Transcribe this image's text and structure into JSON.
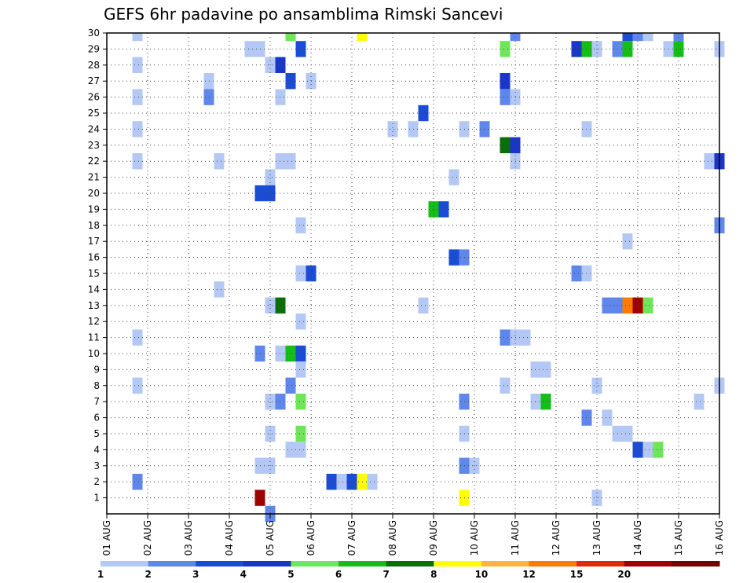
{
  "chart_data": {
    "type": "heatmap",
    "title": "GEFS 6hr padavine po ansamblima Rimski Sancevi",
    "xlabel": "",
    "ylabel": "",
    "x_ticks": [
      "01 AUG",
      "02 AUG",
      "03 AUG",
      "04 AUG",
      "05 AUG",
      "06 AUG",
      "07 AUG",
      "08 AUG",
      "09 AUG",
      "10 AUG",
      "11 AUG",
      "12 AUG",
      "13 AUG",
      "14 AUG",
      "15 AUG",
      "16 AUG"
    ],
    "y_ticks": [
      "1",
      "2",
      "3",
      "4",
      "5",
      "6",
      "7",
      "8",
      "9",
      "10",
      "11",
      "12",
      "13",
      "14",
      "15",
      "16",
      "17",
      "18",
      "19",
      "20",
      "21",
      "22",
      "23",
      "24",
      "25",
      "26",
      "27",
      "28",
      "29",
      "30"
    ],
    "xlim_days": [
      1,
      16
    ],
    "ylim_members": [
      0,
      30
    ],
    "grid": true,
    "legend": {
      "placement": "bottom",
      "levels": [
        "1",
        "2",
        "3",
        "4",
        "5",
        "6",
        "7",
        "8",
        "10",
        "12",
        "15",
        "20"
      ],
      "colors": [
        "#b4c8f5",
        "#5f87eb",
        "#1a4cd6",
        "#1a36c8",
        "#6ee658",
        "#14be14",
        "#0a6e0a",
        "#ffff00",
        "#ffb43c",
        "#ff7a00",
        "#dc2a0a",
        "#a00000",
        "#780000"
      ]
    },
    "cells": [
      {
        "day": 1.75,
        "member": 30,
        "value": 1
      },
      {
        "day": 1.75,
        "member": 28,
        "value": 1
      },
      {
        "day": 1.75,
        "member": 26,
        "value": 1
      },
      {
        "day": 1.75,
        "member": 24,
        "value": 1
      },
      {
        "day": 1.75,
        "member": 22,
        "value": 1
      },
      {
        "day": 1.75,
        "member": 11,
        "value": 1
      },
      {
        "day": 1.75,
        "member": 8,
        "value": 1
      },
      {
        "day": 1.75,
        "member": 2,
        "value": 2
      },
      {
        "day": 3.5,
        "member": 27,
        "value": 1
      },
      {
        "day": 3.5,
        "member": 26,
        "value": 2
      },
      {
        "day": 3.75,
        "member": 22,
        "value": 1
      },
      {
        "day": 3.75,
        "member": 14,
        "value": 1
      },
      {
        "day": 4.5,
        "member": 29,
        "value": 1
      },
      {
        "day": 4.75,
        "member": 29,
        "value": 1
      },
      {
        "day": 4.75,
        "member": 20,
        "value": 3
      },
      {
        "day": 4.75,
        "member": 10,
        "value": 2
      },
      {
        "day": 4.75,
        "member": 1,
        "value": 20
      },
      {
        "day": 5.0,
        "member": 28,
        "value": 1
      },
      {
        "day": 5.0,
        "member": 21,
        "value": 1
      },
      {
        "day": 5.0,
        "member": 20,
        "value": 3
      },
      {
        "day": 5.0,
        "member": 13,
        "value": 1
      },
      {
        "day": 5.0,
        "member": 7,
        "value": 1
      },
      {
        "day": 5.0,
        "member": 5,
        "value": 1
      },
      {
        "day": 5.0,
        "member": 3,
        "value": 1
      },
      {
        "day": 5.0,
        "member": 0,
        "value": 2
      },
      {
        "day": 4.75,
        "member": 3,
        "value": 1
      },
      {
        "day": 5.25,
        "member": 28,
        "value": 4
      },
      {
        "day": 5.25,
        "member": 26,
        "value": 1
      },
      {
        "day": 5.25,
        "member": 22,
        "value": 1
      },
      {
        "day": 5.25,
        "member": 13,
        "value": 7
      },
      {
        "day": 5.25,
        "member": 10,
        "value": 1
      },
      {
        "day": 5.25,
        "member": 7,
        "value": 2
      },
      {
        "day": 5.5,
        "member": 30,
        "value": 5
      },
      {
        "day": 5.5,
        "member": 27,
        "value": 3
      },
      {
        "day": 5.5,
        "member": 22,
        "value": 1
      },
      {
        "day": 5.5,
        "member": 10,
        "value": 6
      },
      {
        "day": 5.5,
        "member": 8,
        "value": 2
      },
      {
        "day": 5.5,
        "member": 4,
        "value": 1
      },
      {
        "day": 5.75,
        "member": 29,
        "value": 3
      },
      {
        "day": 5.75,
        "member": 18,
        "value": 1
      },
      {
        "day": 5.75,
        "member": 15,
        "value": 1
      },
      {
        "day": 5.75,
        "member": 12,
        "value": 1
      },
      {
        "day": 5.75,
        "member": 10,
        "value": 3
      },
      {
        "day": 5.75,
        "member": 9,
        "value": 1
      },
      {
        "day": 5.75,
        "member": 7,
        "value": 5
      },
      {
        "day": 5.75,
        "member": 5,
        "value": 5
      },
      {
        "day": 5.75,
        "member": 4,
        "value": 1
      },
      {
        "day": 6.0,
        "member": 27,
        "value": 1
      },
      {
        "day": 6.0,
        "member": 15,
        "value": 3
      },
      {
        "day": 6.5,
        "member": 2,
        "value": 3
      },
      {
        "day": 6.75,
        "member": 2,
        "value": 1
      },
      {
        "day": 7.0,
        "member": 2,
        "value": 3
      },
      {
        "day": 7.25,
        "member": 2,
        "value": 8
      },
      {
        "day": 7.5,
        "member": 2,
        "value": 1
      },
      {
        "day": 7.25,
        "member": 30,
        "value": 8
      },
      {
        "day": 8.0,
        "member": 24,
        "value": 1
      },
      {
        "day": 8.5,
        "member": 24,
        "value": 1
      },
      {
        "day": 8.75,
        "member": 25,
        "value": 3
      },
      {
        "day": 8.75,
        "member": 13,
        "value": 1
      },
      {
        "day": 9.0,
        "member": 19,
        "value": 6
      },
      {
        "day": 9.25,
        "member": 19,
        "value": 3
      },
      {
        "day": 9.5,
        "member": 21,
        "value": 1
      },
      {
        "day": 9.5,
        "member": 16,
        "value": 3
      },
      {
        "day": 9.75,
        "member": 24,
        "value": 1
      },
      {
        "day": 9.75,
        "member": 16,
        "value": 2
      },
      {
        "day": 9.75,
        "member": 7,
        "value": 2
      },
      {
        "day": 9.75,
        "member": 5,
        "value": 1
      },
      {
        "day": 9.75,
        "member": 3,
        "value": 2
      },
      {
        "day": 9.75,
        "member": 1,
        "value": 8
      },
      {
        "day": 10.0,
        "member": 3,
        "value": 1
      },
      {
        "day": 10.25,
        "member": 24,
        "value": 2
      },
      {
        "day": 10.75,
        "member": 29,
        "value": 5
      },
      {
        "day": 10.75,
        "member": 27,
        "value": 4
      },
      {
        "day": 10.75,
        "member": 26,
        "value": 2
      },
      {
        "day": 10.75,
        "member": 23,
        "value": 7
      },
      {
        "day": 10.75,
        "member": 11,
        "value": 2
      },
      {
        "day": 10.75,
        "member": 8,
        "value": 1
      },
      {
        "day": 11.0,
        "member": 30,
        "value": 2
      },
      {
        "day": 11.0,
        "member": 26,
        "value": 1
      },
      {
        "day": 11.0,
        "member": 23,
        "value": 4
      },
      {
        "day": 11.0,
        "member": 22,
        "value": 1
      },
      {
        "day": 11.0,
        "member": 11,
        "value": 1
      },
      {
        "day": 11.25,
        "member": 11,
        "value": 1
      },
      {
        "day": 11.5,
        "member": 9,
        "value": 1
      },
      {
        "day": 11.5,
        "member": 7,
        "value": 1
      },
      {
        "day": 11.75,
        "member": 9,
        "value": 1
      },
      {
        "day": 11.75,
        "member": 7,
        "value": 6
      },
      {
        "day": 12.5,
        "member": 29,
        "value": 4
      },
      {
        "day": 12.75,
        "member": 29,
        "value": 6
      },
      {
        "day": 12.75,
        "member": 24,
        "value": 1
      },
      {
        "day": 12.75,
        "member": 6,
        "value": 2
      },
      {
        "day": 12.5,
        "member": 15,
        "value": 2
      },
      {
        "day": 12.75,
        "member": 15,
        "value": 1
      },
      {
        "day": 13.0,
        "member": 29,
        "value": 1
      },
      {
        "day": 13.0,
        "member": 8,
        "value": 1
      },
      {
        "day": 13.0,
        "member": 1,
        "value": 1
      },
      {
        "day": 13.25,
        "member": 6,
        "value": 1
      },
      {
        "day": 13.25,
        "member": 13,
        "value": 2
      },
      {
        "day": 13.5,
        "member": 13,
        "value": 2
      },
      {
        "day": 13.75,
        "member": 13,
        "value": 12
      },
      {
        "day": 14.0,
        "member": 13,
        "value": 20
      },
      {
        "day": 14.25,
        "member": 13,
        "value": 5
      },
      {
        "day": 13.5,
        "member": 29,
        "value": 2
      },
      {
        "day": 13.5,
        "member": 5,
        "value": 1
      },
      {
        "day": 13.75,
        "member": 5,
        "value": 1
      },
      {
        "day": 13.75,
        "member": 30,
        "value": 3
      },
      {
        "day": 13.75,
        "member": 29,
        "value": 6
      },
      {
        "day": 13.75,
        "member": 17,
        "value": 1
      },
      {
        "day": 14.0,
        "member": 30,
        "value": 2
      },
      {
        "day": 14.25,
        "member": 30,
        "value": 1
      },
      {
        "day": 14.0,
        "member": 4,
        "value": 3
      },
      {
        "day": 14.25,
        "member": 4,
        "value": 1
      },
      {
        "day": 14.5,
        "member": 4,
        "value": 5
      },
      {
        "day": 14.75,
        "member": 29,
        "value": 1
      },
      {
        "day": 15.0,
        "member": 30,
        "value": 2
      },
      {
        "day": 15.0,
        "member": 29,
        "value": 6
      },
      {
        "day": 15.5,
        "member": 7,
        "value": 1
      },
      {
        "day": 15.75,
        "member": 22,
        "value": 1
      },
      {
        "day": 16.0,
        "member": 22,
        "value": 4
      },
      {
        "day": 16.0,
        "member": 29,
        "value": 1
      },
      {
        "day": 16.0,
        "member": 18,
        "value": 2
      },
      {
        "day": 16.0,
        "member": 8,
        "value": 1
      }
    ]
  }
}
